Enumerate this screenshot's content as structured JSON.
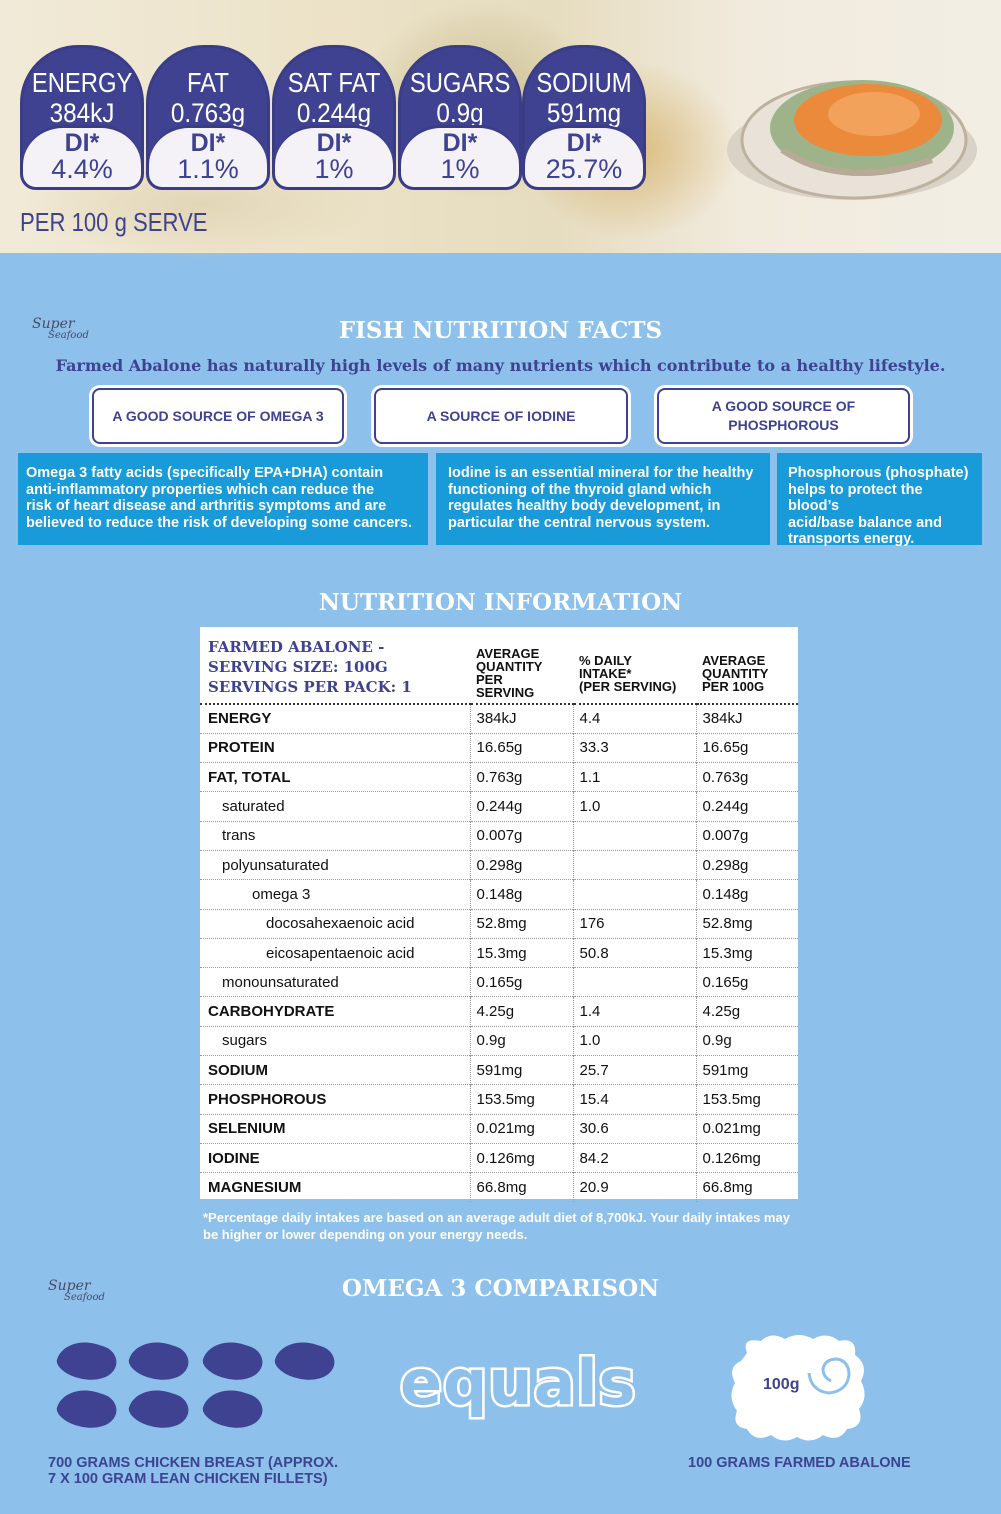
{
  "badges": [
    {
      "label": "ENERGY",
      "value": "384kJ",
      "di": "DI*",
      "pct": "4.4%"
    },
    {
      "label": "FAT",
      "value": "0.763g",
      "di": "DI*",
      "pct": "1.1%"
    },
    {
      "label": "SAT FAT",
      "value": "0.244g",
      "di": "DI*",
      "pct": "1%"
    },
    {
      "label": "SUGARS",
      "value": "0.9g",
      "di": "DI*",
      "pct": "1%"
    },
    {
      "label": "SODIUM",
      "value": "591mg",
      "di": "DI*",
      "pct": "25.7%"
    }
  ],
  "per_serve": "PER 100 g SERVE",
  "logo": {
    "line1": "Super",
    "line2": "Seafood"
  },
  "facts": {
    "title": "FISH NUTRITION FACTS",
    "subtitle": "Farmed Abalone has naturally high levels of many nutrients which contribute to a healthy lifestyle.",
    "tabs": [
      "A GOOD SOURCE OF OMEGA 3",
      "A SOURCE OF IODINE",
      "A GOOD SOURCE OF PHOSPHOROUS"
    ],
    "texts": [
      [
        "Omega 3 fatty acids (specifically EPA+DHA) contain",
        "anti-inflammatory properties which can reduce the",
        "risk of heart disease and arthritis symptoms and are",
        "believed to reduce the risk of developing some cancers."
      ],
      [
        "Iodine is an essential mineral for the healthy",
        "functioning of the thyroid gland which",
        "regulates healthy body development, in",
        "particular the central nervous system."
      ],
      [
        "Phosphorous (phosphate)",
        "helps to protect the blood’s",
        "acid/base balance and",
        "transports energy."
      ]
    ]
  },
  "nutrition": {
    "title": "NUTRITION INFORMATION",
    "product": [
      "FARMED ABALONE -",
      "SERVING SIZE: 100G",
      "SERVINGS PER PACK: 1"
    ],
    "col_headers": [
      [
        "AVERAGE",
        "QUANTITY",
        "PER",
        "SERVING"
      ],
      [
        "% DAILY",
        "INTAKE*",
        "(PER SERVING)"
      ],
      [
        "AVERAGE",
        "QUANTITY",
        "PER 100G"
      ]
    ],
    "rows": [
      {
        "name": "ENERGY",
        "indent": 0,
        "bold": true,
        "serving": "384kJ",
        "di": "4.4",
        "per100": "384kJ"
      },
      {
        "name": "PROTEIN",
        "indent": 0,
        "bold": true,
        "serving": "16.65g",
        "di": "33.3",
        "per100": "16.65g"
      },
      {
        "name": "FAT, TOTAL",
        "indent": 0,
        "bold": true,
        "serving": "0.763g",
        "di": "1.1",
        "per100": "0.763g"
      },
      {
        "name": "saturated",
        "indent": 1,
        "bold": false,
        "serving": "0.244g",
        "di": "1.0",
        "per100": "0.244g"
      },
      {
        "name": "trans",
        "indent": 1,
        "bold": false,
        "serving": "0.007g",
        "di": "",
        "per100": "0.007g"
      },
      {
        "name": "polyunsaturated",
        "indent": 1,
        "bold": false,
        "serving": "0.298g",
        "di": "",
        "per100": "0.298g"
      },
      {
        "name": "omega 3",
        "indent": 2,
        "bold": false,
        "serving": "0.148g",
        "di": "",
        "per100": "0.148g"
      },
      {
        "name": "docosahexaenoic acid",
        "indent": 3,
        "bold": false,
        "serving": "52.8mg",
        "di": "176",
        "per100": "52.8mg"
      },
      {
        "name": "eicosapentaenoic acid",
        "indent": 3,
        "bold": false,
        "serving": "15.3mg",
        "di": "50.8",
        "per100": "15.3mg"
      },
      {
        "name": "monounsaturated",
        "indent": 1,
        "bold": false,
        "serving": "0.165g",
        "di": "",
        "per100": "0.165g"
      },
      {
        "name": "CARBOHYDRATE",
        "indent": 0,
        "bold": true,
        "serving": "4.25g",
        "di": "1.4",
        "per100": "4.25g"
      },
      {
        "name": "sugars",
        "indent": 1,
        "bold": false,
        "serving": "0.9g",
        "di": "1.0",
        "per100": "0.9g"
      },
      {
        "name": "SODIUM",
        "indent": 0,
        "bold": true,
        "serving": "591mg",
        "di": "25.7",
        "per100": "591mg"
      },
      {
        "name": "PHOSPHOROUS",
        "indent": 0,
        "bold": true,
        "serving": "153.5mg",
        "di": "15.4",
        "per100": "153.5mg"
      },
      {
        "name": "SELENIUM",
        "indent": 0,
        "bold": true,
        "serving": "0.021mg",
        "di": "30.6",
        "per100": "0.021mg"
      },
      {
        "name": "IODINE",
        "indent": 0,
        "bold": true,
        "serving": "0.126mg",
        "di": "84.2",
        "per100": "0.126mg"
      },
      {
        "name": "MAGNESIUM",
        "indent": 0,
        "bold": true,
        "serving": "66.8mg",
        "di": "20.9",
        "per100": "66.8mg"
      }
    ],
    "footnote": "*Percentage daily intakes are based on an average adult diet of 8,700kJ. Your daily intakes may be higher or lower depending on your energy needs."
  },
  "comparison": {
    "title": "OMEGA 3 COMPARISON",
    "equals": "equals",
    "cloud_label": "100g",
    "left_caption": [
      "700 GRAMS CHICKEN BREAST (APPROX.",
      "7 X 100 GRAM LEAN CHICKEN FILLETS)"
    ],
    "right_caption": "100 GRAMS FARMED ABALONE"
  },
  "colors": {
    "navy": "#3e4291",
    "panel_blue": "#189bd8",
    "background": "#8dc0ea"
  }
}
